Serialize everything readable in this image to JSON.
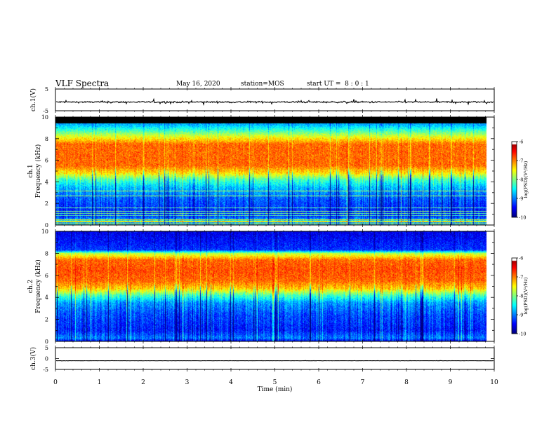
{
  "header": {
    "title": "VLF Spectra",
    "date": "May 16, 2020",
    "station": "station=MOS",
    "start_ut": "start UT =  8 : 0 : 1"
  },
  "colors": {
    "background": "#ffffff",
    "axis": "#000000",
    "trace": "#000000",
    "saturated": "#000000"
  },
  "chart_data": [
    {
      "id": "ch1-waveform",
      "type": "line",
      "ylabel": "ch.1(V)",
      "ylim": [
        -5,
        5
      ],
      "y_ticks": [
        "5",
        "-5"
      ],
      "xlim": [
        0,
        10
      ],
      "series": [
        {
          "name": "ch.1",
          "level": -1,
          "noise": 0.6
        }
      ]
    },
    {
      "id": "ch1-spectrogram",
      "type": "heatmap",
      "ylabel": "ch.1 Frequency (kHz)",
      "ylabel_channel": "ch.1",
      "ylabel_quantity": "Frequency (kHz)",
      "ylim": [
        0,
        10
      ],
      "y_ticks": [
        "0",
        "2",
        "4",
        "6",
        "8",
        "10"
      ],
      "xlim": [
        0,
        10
      ],
      "data_end_min": 9.82,
      "cutoff_khz": 9.4,
      "colorbar": {
        "label": "log(PSD)(V²/Hz)",
        "range": [
          -10,
          -6
        ],
        "ticks": [
          "-6",
          "-7",
          "-8",
          "-9",
          "-10"
        ]
      },
      "profile_khz_logpsd": [
        [
          0.0,
          -9.3
        ],
        [
          0.4,
          -8.6
        ],
        [
          0.8,
          -9.3
        ],
        [
          1.5,
          -9.3
        ],
        [
          2.5,
          -9.1
        ],
        [
          3.5,
          -8.7
        ],
        [
          4.2,
          -8.2
        ],
        [
          4.8,
          -7.4
        ],
        [
          5.5,
          -6.9
        ],
        [
          6.5,
          -6.9
        ],
        [
          7.5,
          -6.9
        ],
        [
          8.2,
          -7.6
        ],
        [
          8.8,
          -8.3
        ],
        [
          9.3,
          -8.8
        ]
      ]
    },
    {
      "id": "ch2-spectrogram",
      "type": "heatmap",
      "ylabel": "ch.2 Frequency (kHz)",
      "ylabel_channel": "ch.2",
      "ylabel_quantity": "Frequency (kHz)",
      "ylim": [
        0,
        10
      ],
      "y_ticks": [
        "0",
        "2",
        "4",
        "6",
        "8",
        "10"
      ],
      "xlim": [
        0,
        10
      ],
      "data_end_min": 9.82,
      "colorbar": {
        "label": "log(PSD)(V²/Hz)",
        "range": [
          -10,
          -6
        ],
        "ticks": [
          "-6",
          "-7",
          "-8",
          "-9",
          "-10"
        ]
      },
      "profile_khz_logpsd": [
        [
          0.0,
          -9.6
        ],
        [
          0.3,
          -9.0
        ],
        [
          1.0,
          -9.4
        ],
        [
          2.5,
          -9.2
        ],
        [
          3.5,
          -8.9
        ],
        [
          4.2,
          -8.2
        ],
        [
          4.8,
          -7.3
        ],
        [
          5.5,
          -6.9
        ],
        [
          6.5,
          -6.8
        ],
        [
          7.4,
          -6.9
        ],
        [
          8.0,
          -7.8
        ],
        [
          8.3,
          -9.3
        ],
        [
          10.0,
          -9.6
        ]
      ]
    },
    {
      "id": "ch3-waveform",
      "type": "line",
      "ylabel": "ch.3(V)",
      "ylim": [
        -5,
        5
      ],
      "y_ticks": [
        "5",
        "0",
        "-5"
      ],
      "xlim": [
        0,
        10
      ],
      "xlabel": "Time (min)",
      "x_ticks": [
        "0",
        "1",
        "2",
        "3",
        "4",
        "5",
        "6",
        "7",
        "8",
        "9",
        "10"
      ],
      "series": [
        {
          "name": "ch.3",
          "level": -1,
          "noise": 0.05
        }
      ]
    }
  ]
}
